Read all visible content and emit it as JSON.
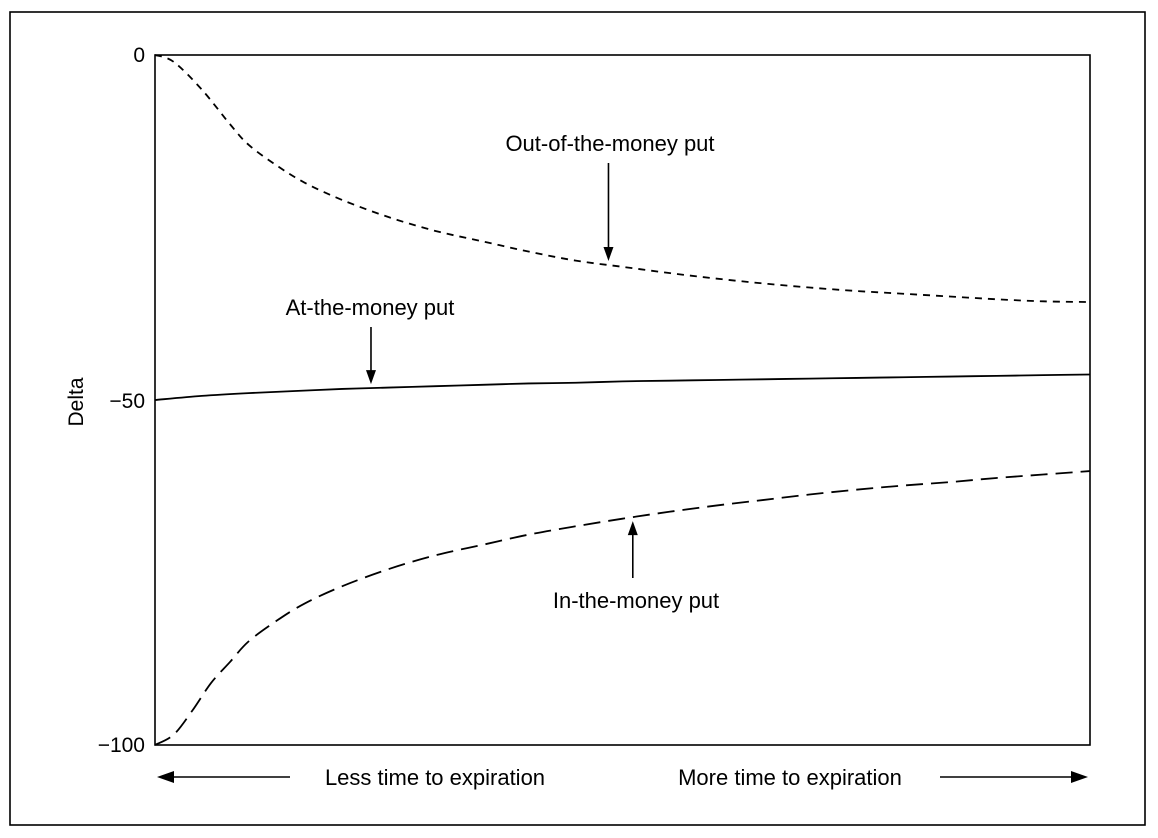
{
  "chart_data": {
    "type": "line",
    "xlabel": "",
    "ylabel": "Delta",
    "ylim": [
      -100,
      0
    ],
    "xlim": [
      0,
      1
    ],
    "yticks": [
      {
        "value": 0,
        "label": "0"
      },
      {
        "value": -50,
        "label": "−50"
      },
      {
        "value": -100,
        "label": "−100"
      }
    ],
    "x_direction_labels": {
      "left": "Less time to expiration",
      "right": "More time to expiration"
    },
    "grid": false,
    "legend": "none",
    "series": [
      {
        "key": "otm",
        "style": "short-dash",
        "annotation": "Out-of-the-money put",
        "annotation_at_x": 0.485,
        "x": [
          0,
          0.02,
          0.05,
          0.08,
          0.1,
          0.13,
          0.16,
          0.2,
          0.25,
          0.3,
          0.35,
          0.4,
          0.45,
          0.5,
          0.55,
          0.6,
          0.65,
          0.7,
          0.75,
          0.8,
          0.85,
          0.9,
          0.95,
          1.0
        ],
        "values": [
          0,
          -1,
          -5,
          -10,
          -13,
          -16,
          -18.5,
          -21,
          -23.5,
          -25.5,
          -27,
          -28.5,
          -29.8,
          -30.7,
          -31.6,
          -32.4,
          -33.1,
          -33.7,
          -34.2,
          -34.6,
          -35,
          -35.4,
          -35.7,
          -35.8
        ]
      },
      {
        "key": "atm",
        "style": "solid",
        "annotation": "At-the-money put",
        "annotation_at_x": 0.231,
        "x": [
          0,
          0.05,
          0.1,
          0.15,
          0.2,
          0.25,
          0.3,
          0.35,
          0.4,
          0.45,
          0.5,
          0.55,
          0.6,
          0.65,
          0.7,
          0.75,
          0.8,
          0.85,
          0.9,
          0.95,
          1.0
        ],
        "values": [
          -50,
          -49.4,
          -49,
          -48.7,
          -48.4,
          -48.2,
          -48,
          -47.8,
          -47.6,
          -47.5,
          -47.3,
          -47.2,
          -47.1,
          -47,
          -46.9,
          -46.8,
          -46.7,
          -46.6,
          -46.5,
          -46.4,
          -46.3
        ]
      },
      {
        "key": "itm",
        "style": "long-dash",
        "annotation": "In-the-money put",
        "annotation_at_x": 0.511,
        "x": [
          0,
          0.02,
          0.04,
          0.06,
          0.08,
          0.1,
          0.13,
          0.16,
          0.2,
          0.25,
          0.3,
          0.35,
          0.4,
          0.45,
          0.5,
          0.55,
          0.6,
          0.65,
          0.7,
          0.75,
          0.8,
          0.85,
          0.9,
          0.95,
          1.0
        ],
        "values": [
          -100,
          -98.5,
          -95,
          -91,
          -88,
          -85,
          -82,
          -79.5,
          -77,
          -74.5,
          -72.5,
          -71,
          -69.5,
          -68.3,
          -67.2,
          -66.2,
          -65.3,
          -64.5,
          -63.7,
          -63,
          -62.4,
          -61.9,
          -61.3,
          -60.8,
          -60.3
        ]
      }
    ]
  }
}
